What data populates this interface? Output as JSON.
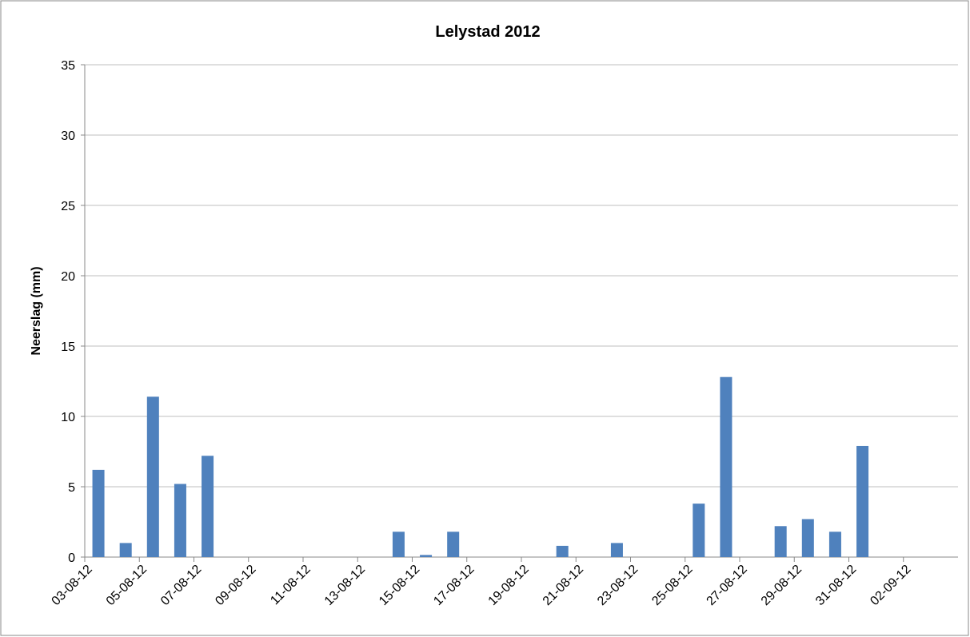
{
  "chart_data": {
    "type": "bar",
    "title": "Lelystad 2012",
    "y_label": "Neerslag (mm)",
    "categories": [
      "03-08-12",
      null,
      "05-08-12",
      null,
      "07-08-12",
      null,
      "09-08-12",
      null,
      "11-08-12",
      null,
      "13-08-12",
      null,
      "15-08-12",
      null,
      "17-08-12",
      null,
      "19-08-12",
      null,
      "21-08-12",
      null,
      "23-08-12",
      null,
      "25-08-12",
      null,
      "27-08-12",
      null,
      "29-08-12",
      null,
      "31-08-12",
      null,
      "02-09-12",
      null
    ],
    "values": [
      6.2,
      1.0,
      11.4,
      5.2,
      7.2,
      0,
      0,
      0,
      0,
      0,
      0,
      1.8,
      0.15,
      1.8,
      0,
      0,
      0,
      0.8,
      0,
      1.0,
      0,
      0,
      3.8,
      12.8,
      0,
      2.2,
      2.7,
      1.8,
      7.9,
      0,
      0,
      0
    ],
    "color": "#4f81bd",
    "ylim": [
      0,
      35
    ],
    "yticks": [
      0,
      5,
      10,
      15,
      20,
      25,
      30,
      35
    ],
    "grid": true
  }
}
